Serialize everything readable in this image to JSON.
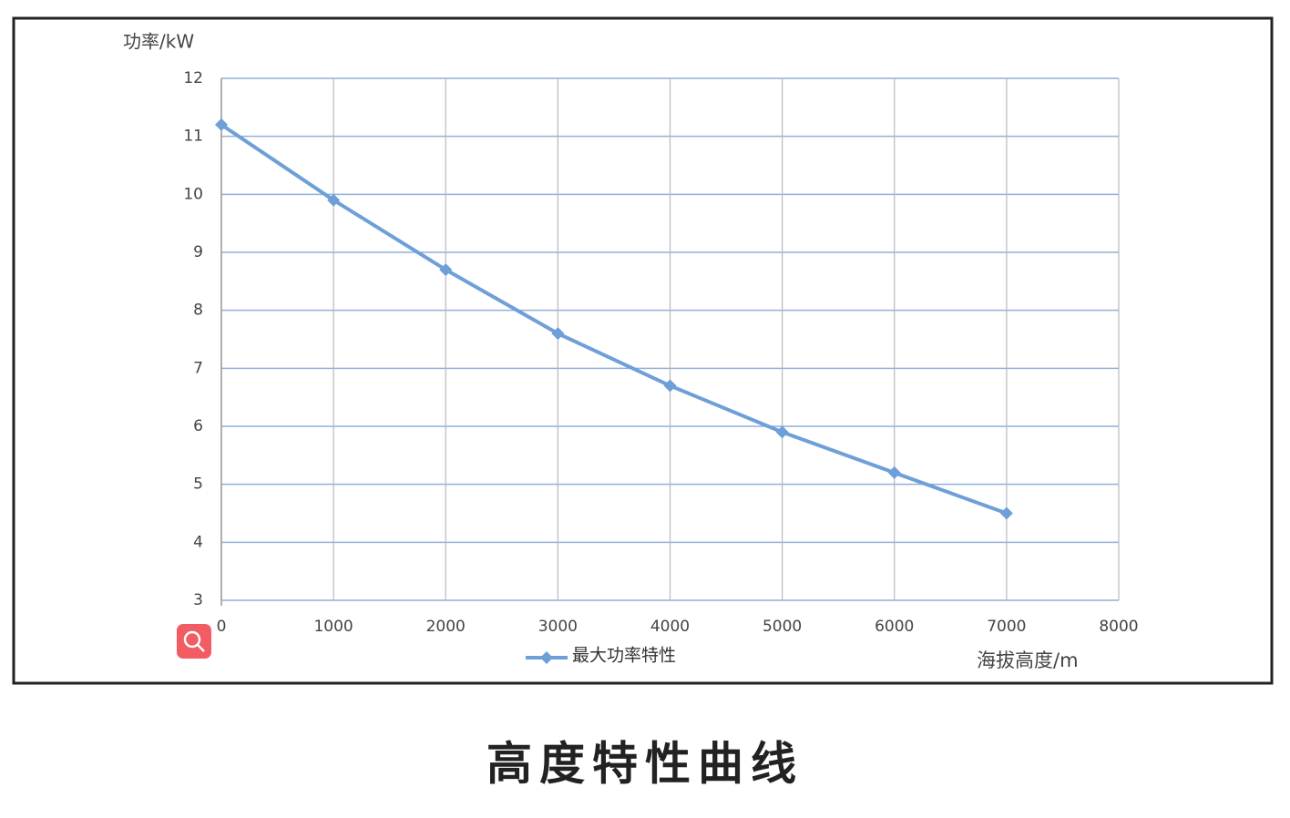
{
  "chart_data": {
    "type": "line",
    "title": "高度特性曲线",
    "ylabel": "功率/kW",
    "xlabel": "海拔高度/m",
    "x": [
      0,
      1000,
      2000,
      3000,
      4000,
      5000,
      6000,
      7000
    ],
    "series": [
      {
        "name": "最大功率特性",
        "color": "#6f9fd8",
        "values": [
          11.2,
          9.9,
          8.7,
          7.6,
          6.7,
          5.9,
          5.2,
          4.5
        ]
      }
    ],
    "xlim": [
      0,
      8000
    ],
    "xticks": [
      0,
      1000,
      2000,
      3000,
      4000,
      5000,
      6000,
      7000,
      8000
    ],
    "ylim": [
      3,
      12
    ],
    "yticks": [
      3,
      4,
      5,
      6,
      7,
      8,
      9,
      10,
      11,
      12
    ],
    "grid": true,
    "legend": "bottom"
  }
}
